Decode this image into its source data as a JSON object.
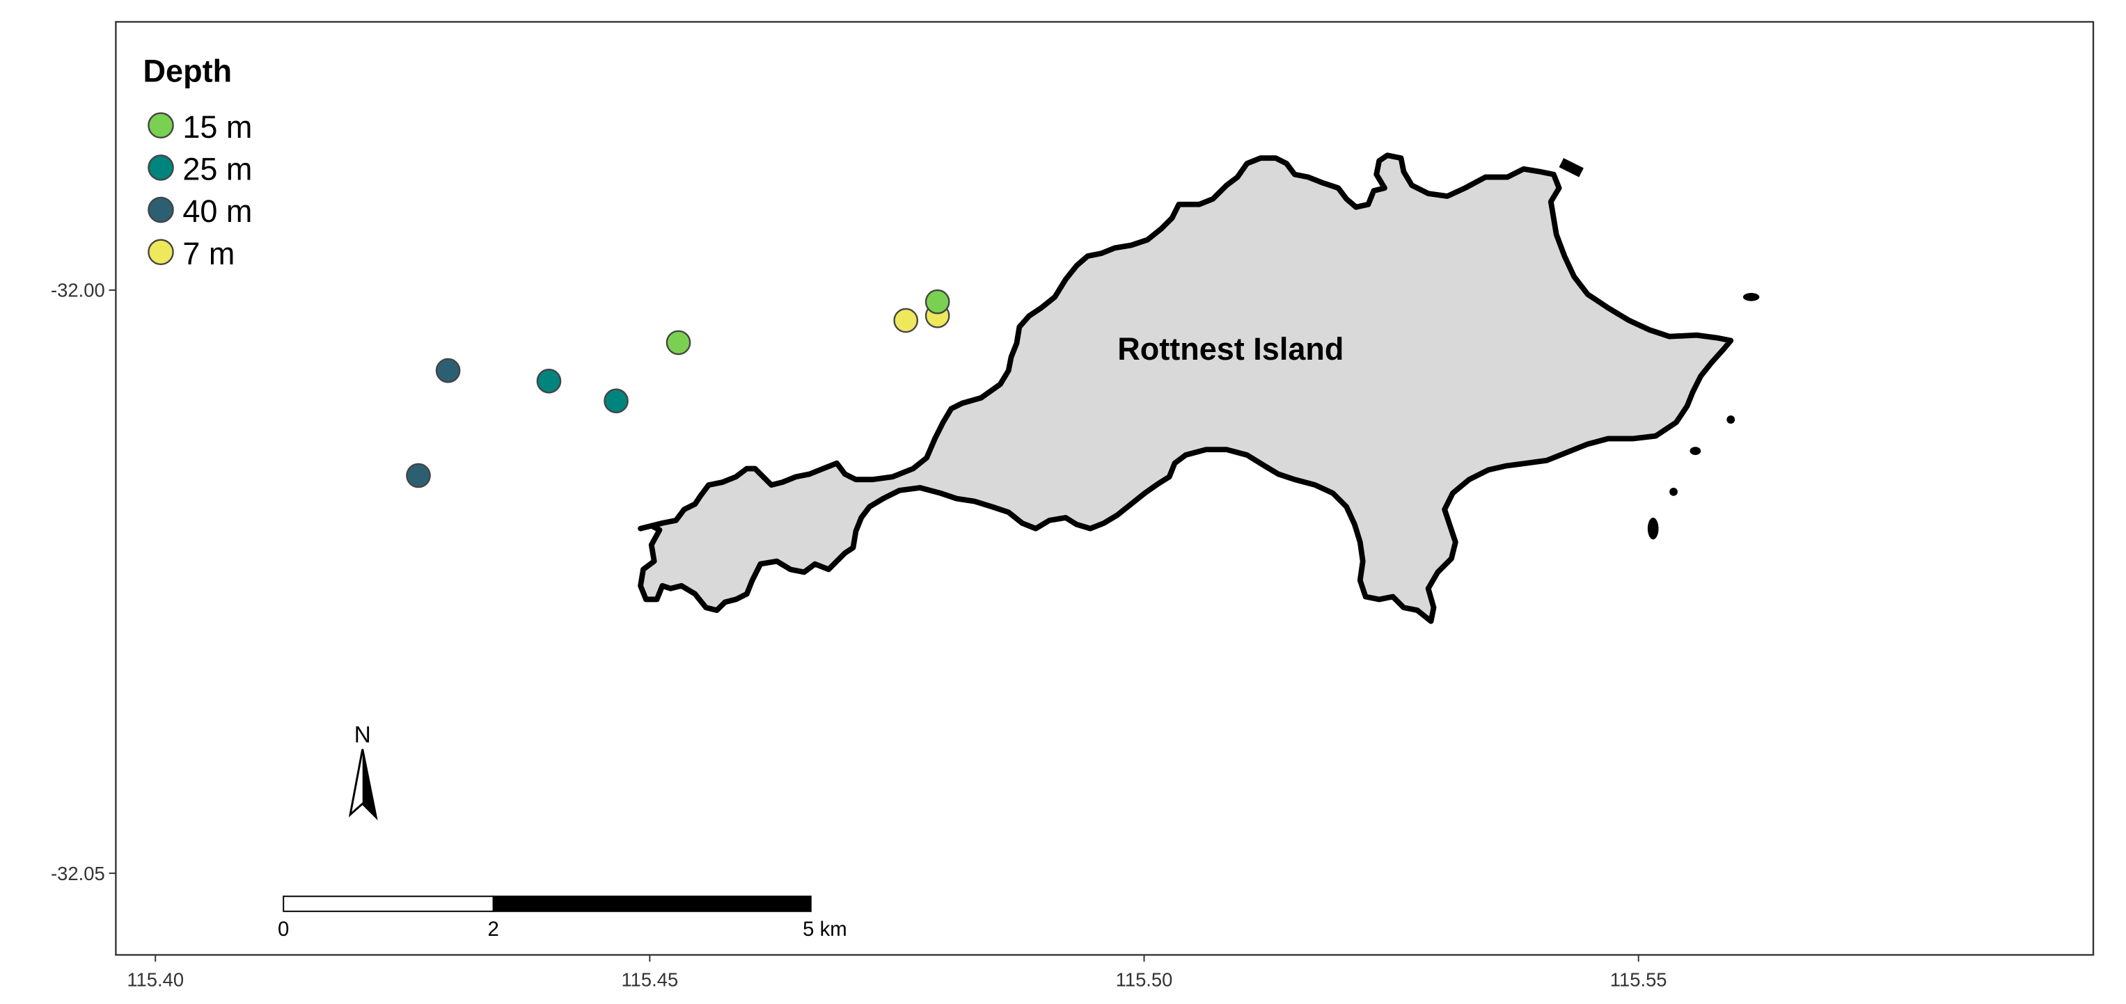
{
  "map": {
    "island_label": "Rottnest Island",
    "legend": {
      "title": "Depth",
      "items": [
        {
          "label": "15 m",
          "color": "#7AD151"
        },
        {
          "label": "25 m",
          "color": "#00847E"
        },
        {
          "label": "40 m",
          "color": "#2D5F73"
        },
        {
          "label": "7 m",
          "color": "#EEE85C"
        }
      ]
    },
    "north_arrow_label": "N",
    "scale_bar": {
      "labels": [
        "0",
        "2",
        "5 km"
      ]
    },
    "x_ticks": [
      "115.40",
      "115.45",
      "115.50",
      "115.55"
    ],
    "y_ticks": [
      "-32.00",
      "-32.05"
    ]
  },
  "chart_data": {
    "type": "scatter",
    "xlim": [
      115.396,
      115.596
    ],
    "ylim": [
      -32.057,
      -31.977
    ],
    "x_tick_values": [
      115.4,
      115.45,
      115.5,
      115.55
    ],
    "y_tick_values": [
      -32.0,
      -32.05
    ],
    "grid": false,
    "legend_position": "top-left",
    "series": [
      {
        "name": "7 m",
        "color": "#EEE85C",
        "points": [
          [
            115.4759,
            -32.0026
          ],
          [
            115.4791,
            -32.0022
          ]
        ]
      },
      {
        "name": "15 m",
        "color": "#7AD151",
        "points": [
          [
            115.4791,
            -32.001
          ],
          [
            115.4529,
            -32.0045
          ]
        ]
      },
      {
        "name": "25 m",
        "color": "#00847E",
        "points": [
          [
            115.4398,
            -32.0078
          ],
          [
            115.4466,
            -32.0095
          ]
        ]
      },
      {
        "name": "40 m",
        "color": "#2D5F73",
        "points": [
          [
            115.4296,
            -32.0069
          ],
          [
            115.4266,
            -32.0159
          ]
        ]
      }
    ]
  }
}
